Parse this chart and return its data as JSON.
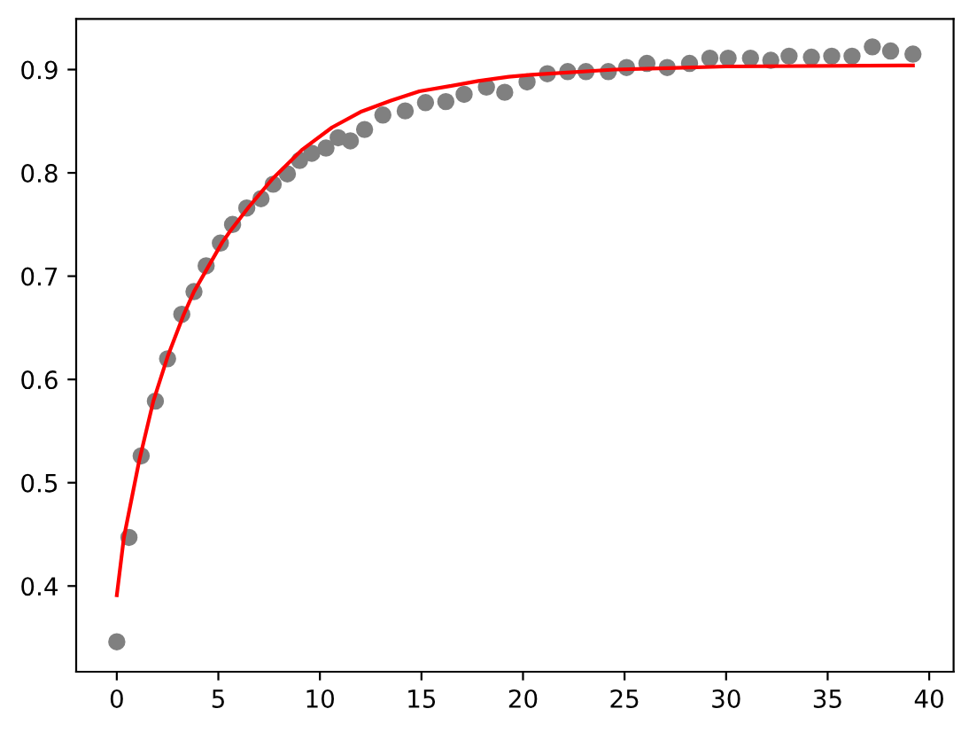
{
  "chart_data": {
    "type": "scatter",
    "xlim": [
      -2.0,
      41.2
    ],
    "ylim": [
      0.317,
      0.949
    ],
    "xticks": [
      0,
      5,
      10,
      15,
      20,
      25,
      30,
      35,
      40
    ],
    "yticks": [
      0.4,
      0.5,
      0.6,
      0.7,
      0.8,
      0.9
    ],
    "grid": false,
    "series": [
      {
        "color": "#808080",
        "marker": "circle",
        "x": [
          0.0,
          0.6,
          1.2,
          1.9,
          2.5,
          3.2,
          3.8,
          4.4,
          5.1,
          5.7,
          6.4,
          7.1,
          7.7,
          8.4,
          9.0,
          9.6,
          10.3,
          10.9,
          11.5,
          12.2,
          13.1,
          14.2,
          15.2,
          16.2,
          17.1,
          18.2,
          19.1,
          20.2,
          21.2,
          22.2,
          23.1,
          24.2,
          25.1,
          26.1,
          27.1,
          28.2,
          29.2,
          30.1,
          31.2,
          32.2,
          33.1,
          34.2,
          35.2,
          36.2,
          37.2,
          38.1,
          39.2
        ],
        "values": [
          0.346,
          0.447,
          0.526,
          0.579,
          0.62,
          0.663,
          0.685,
          0.71,
          0.732,
          0.75,
          0.766,
          0.775,
          0.789,
          0.799,
          0.812,
          0.819,
          0.824,
          0.834,
          0.831,
          0.842,
          0.856,
          0.86,
          0.868,
          0.869,
          0.876,
          0.883,
          0.878,
          0.888,
          0.896,
          0.898,
          0.898,
          0.898,
          0.902,
          0.906,
          0.902,
          0.906,
          0.911,
          0.911,
          0.911,
          0.909,
          0.913,
          0.912,
          0.913,
          0.913,
          0.922,
          0.918,
          0.915
        ]
      },
      {
        "type": "line",
        "color": "#ff0000",
        "line_style": "solid",
        "x": [
          0.0,
          0.35,
          1.1,
          1.8,
          2.5,
          3.3,
          3.8,
          4.5,
          5.2,
          5.6,
          6.5,
          7.7,
          9.1,
          10.6,
          12.0,
          13.5,
          14.9,
          16.4,
          17.8,
          19.3,
          20.4,
          24.5,
          30.0,
          39.2
        ],
        "values": [
          0.391,
          0.447,
          0.521,
          0.579,
          0.622,
          0.663,
          0.685,
          0.709,
          0.733,
          0.744,
          0.767,
          0.795,
          0.822,
          0.844,
          0.859,
          0.87,
          0.879,
          0.884,
          0.889,
          0.893,
          0.895,
          0.9,
          0.903,
          0.904
        ]
      }
    ]
  }
}
